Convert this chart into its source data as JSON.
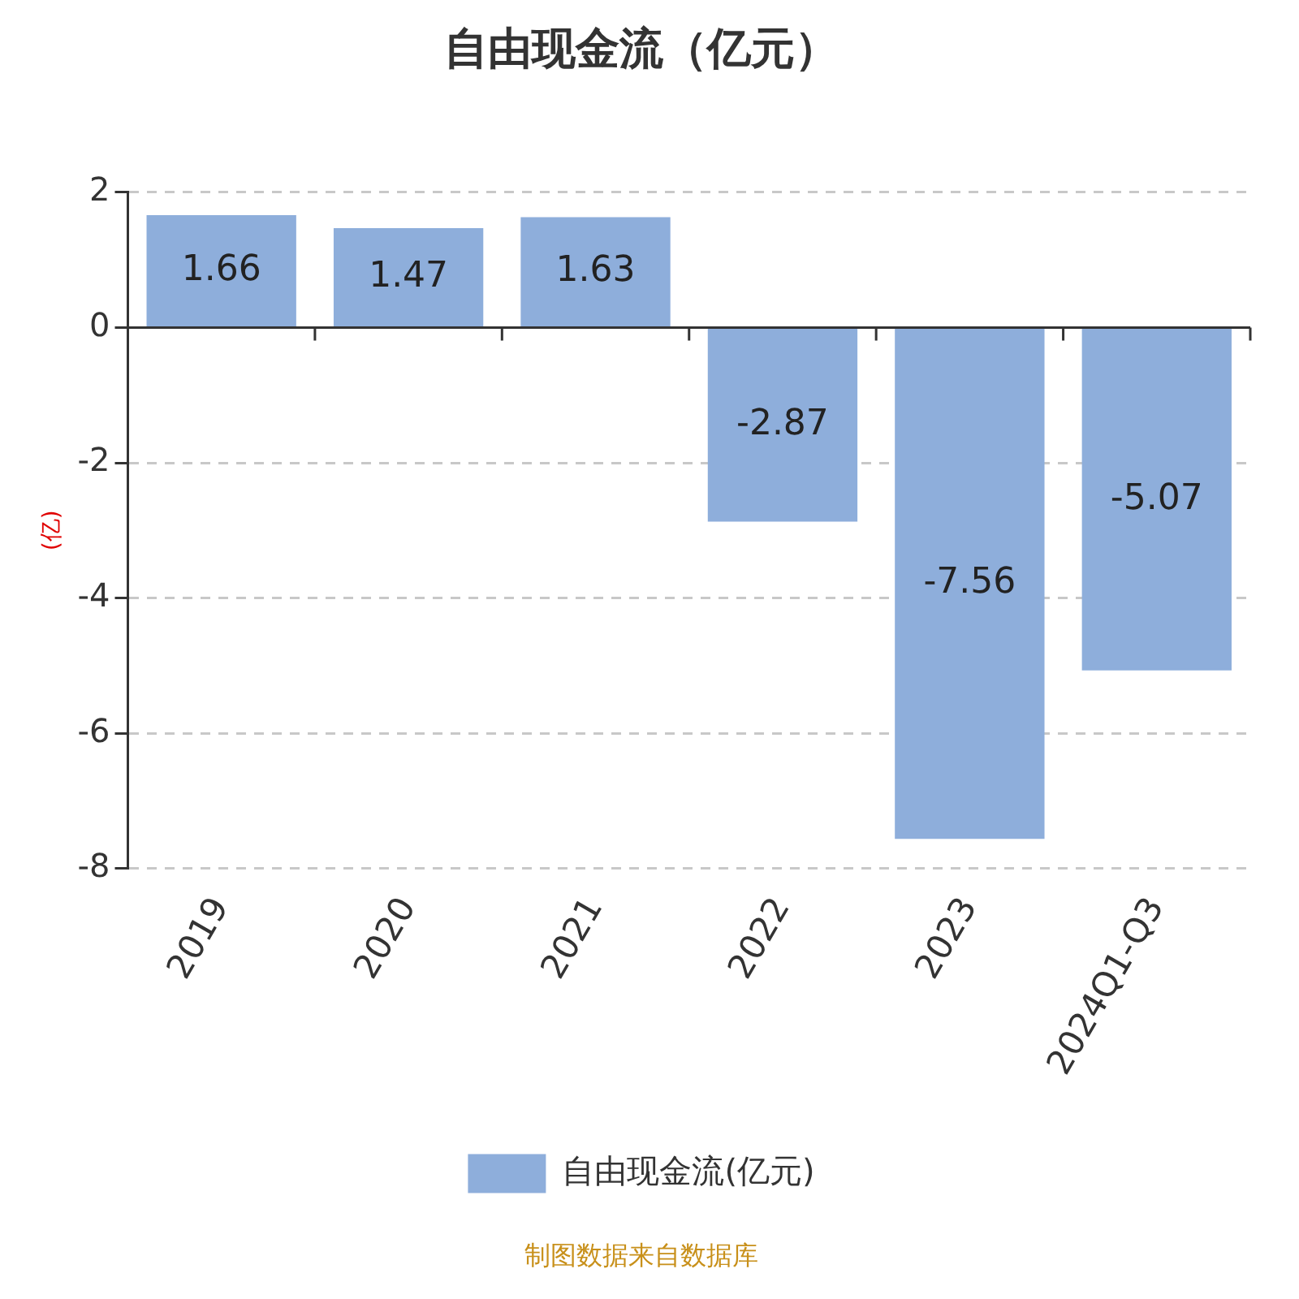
{
  "chart_data": {
    "type": "bar",
    "title": "自由现金流（亿元）",
    "ylabel": "(亿)",
    "categories": [
      "2019",
      "2020",
      "2021",
      "2022",
      "2023",
      "2024Q1-Q3"
    ],
    "series": [
      {
        "name": "自由现金流(亿元)",
        "color": "#8eaedb",
        "values": [
          1.66,
          1.47,
          1.63,
          -2.87,
          -7.56,
          -5.07
        ]
      }
    ],
    "ylim": [
      -8,
      2
    ],
    "yticks": [
      -8,
      -6,
      -4,
      -2,
      0,
      2
    ],
    "grid": "y",
    "legend": "bottom",
    "data_labels": true,
    "annotations": [
      "制图数据来自数据库"
    ]
  }
}
